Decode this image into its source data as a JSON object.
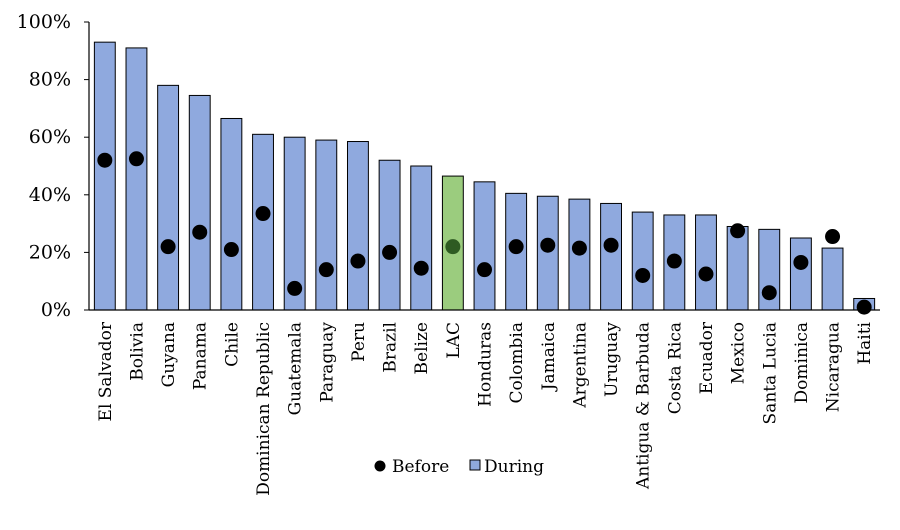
{
  "colors": {
    "during_bar": "#8fa9de",
    "lac_bar": "#9bcc7e",
    "bar_stroke": "#000000",
    "before_marker": "#000000",
    "lac_marker": "#2e5b22"
  },
  "chart_data": {
    "type": "bar",
    "title": "",
    "xlabel": "",
    "ylabel": "",
    "ylim": [
      0,
      1
    ],
    "y_ticks": [
      {
        "value": 0,
        "label": "0%"
      },
      {
        "value": 0.2,
        "label": "20%"
      },
      {
        "value": 0.4,
        "label": "40%"
      },
      {
        "value": 0.6,
        "label": "60%"
      },
      {
        "value": 0.8,
        "label": "80%"
      },
      {
        "value": 1.0,
        "label": "100%"
      }
    ],
    "categories": [
      "El Salvador",
      "Bolivia",
      "Guyana",
      "Panama",
      "Chile",
      "Dominican Republic",
      "Guatemala",
      "Paraguay",
      "Peru",
      "Brazil",
      "Belize",
      "LAC",
      "Honduras",
      "Colombia",
      "Jamaica",
      "Argentina",
      "Uruguay",
      "Antigua & Barbuda",
      "Costa Rica",
      "Ecuador",
      "Mexico",
      "Santa Lucia",
      "Dominica",
      "Nicaragua",
      "Haiti"
    ],
    "highlight_category": "LAC",
    "series": [
      {
        "name": "During",
        "kind": "bar",
        "values": [
          0.93,
          0.91,
          0.78,
          0.745,
          0.665,
          0.61,
          0.6,
          0.59,
          0.585,
          0.52,
          0.5,
          0.465,
          0.445,
          0.405,
          0.395,
          0.385,
          0.37,
          0.34,
          0.33,
          0.33,
          0.29,
          0.28,
          0.25,
          0.215,
          0.04
        ]
      },
      {
        "name": "Before",
        "kind": "marker",
        "values": [
          0.52,
          0.525,
          0.22,
          0.27,
          0.21,
          0.335,
          0.075,
          0.14,
          0.17,
          0.2,
          0.145,
          0.22,
          0.14,
          0.22,
          0.225,
          0.215,
          0.225,
          0.12,
          0.17,
          0.125,
          0.275,
          0.06,
          0.165,
          0.255,
          0.01
        ]
      }
    ],
    "legend": {
      "position": "bottom-center",
      "items": [
        {
          "label": "Before",
          "symbol": "circle"
        },
        {
          "label": "During",
          "symbol": "square"
        }
      ]
    },
    "grid": false
  }
}
